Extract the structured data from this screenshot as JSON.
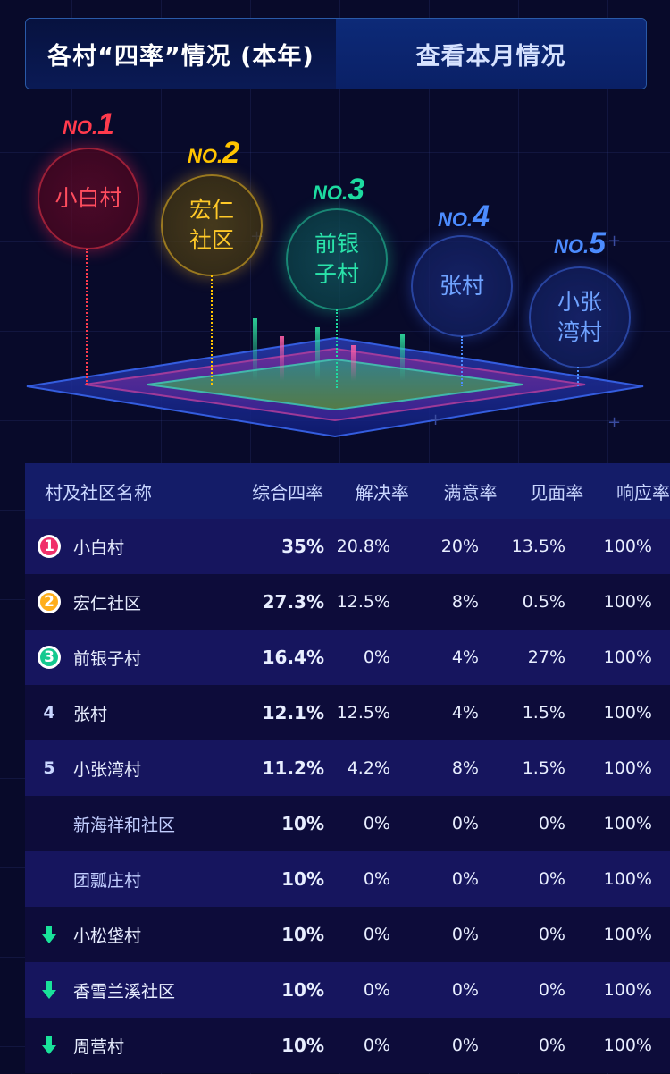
{
  "tabs": [
    {
      "label": "各村“四率”情况 (本年)"
    },
    {
      "label": "查看本月情况"
    }
  ],
  "podium": [
    {
      "no_prefix": "NO.",
      "no": "1",
      "name": "小白村",
      "color": "#ff3b4d"
    },
    {
      "no_prefix": "NO.",
      "no": "2",
      "name": "宏仁\n社区",
      "color": "#ffc400"
    },
    {
      "no_prefix": "NO.",
      "no": "3",
      "name": "前银\n子村",
      "color": "#1ddba0"
    },
    {
      "no_prefix": "NO.",
      "no": "4",
      "name": "张村",
      "color": "#4c8cff"
    },
    {
      "no_prefix": "NO.",
      "no": "5",
      "name": "小张\n湾村",
      "color": "#4c8cff"
    }
  ],
  "table": {
    "headers": [
      "村及社区名称",
      "综合四率",
      "解决率",
      "满意率",
      "见面率",
      "响应率"
    ],
    "rows": [
      {
        "rank": "1",
        "rank_icon": "medal-1-icon",
        "name": "小白村",
        "comp": "35%",
        "res": "20.8%",
        "sat": "20%",
        "meet": "13.5%",
        "resp": "100%"
      },
      {
        "rank": "2",
        "rank_icon": "medal-2-icon",
        "name": "宏仁社区",
        "comp": "27.3%",
        "res": "12.5%",
        "sat": "8%",
        "meet": "0.5%",
        "resp": "100%"
      },
      {
        "rank": "3",
        "rank_icon": "medal-3-icon",
        "name": "前银子村",
        "comp": "16.4%",
        "res": "0%",
        "sat": "4%",
        "meet": "27%",
        "resp": "100%"
      },
      {
        "rank": "4",
        "rank_icon": "",
        "name": "张村",
        "comp": "12.1%",
        "res": "12.5%",
        "sat": "4%",
        "meet": "1.5%",
        "resp": "100%"
      },
      {
        "rank": "5",
        "rank_icon": "",
        "name": "小张湾村",
        "comp": "11.2%",
        "res": "4.2%",
        "sat": "8%",
        "meet": "1.5%",
        "resp": "100%"
      },
      {
        "rank": "",
        "rank_icon": "",
        "name": "新海祥和社区",
        "comp": "10%",
        "res": "0%",
        "sat": "0%",
        "meet": "0%",
        "resp": "100%"
      },
      {
        "rank": "",
        "rank_icon": "",
        "name": "团瓢庄村",
        "comp": "10%",
        "res": "0%",
        "sat": "0%",
        "meet": "0%",
        "resp": "100%"
      },
      {
        "rank": "",
        "rank_icon": "down-arrow-icon",
        "name": "小松垡村",
        "comp": "10%",
        "res": "0%",
        "sat": "0%",
        "meet": "0%",
        "resp": "100%"
      },
      {
        "rank": "",
        "rank_icon": "down-arrow-icon",
        "name": "香雪兰溪社区",
        "comp": "10%",
        "res": "0%",
        "sat": "0%",
        "meet": "0%",
        "resp": "100%"
      },
      {
        "rank": "",
        "rank_icon": "down-arrow-icon",
        "name": "周营村",
        "comp": "10%",
        "res": "0%",
        "sat": "0%",
        "meet": "0%",
        "resp": "100%"
      }
    ]
  },
  "colors": {
    "medal_1": "#f0306a",
    "medal_2": "#ffae1a",
    "medal_3": "#14c98f",
    "down_arrow": "#19e29a"
  }
}
